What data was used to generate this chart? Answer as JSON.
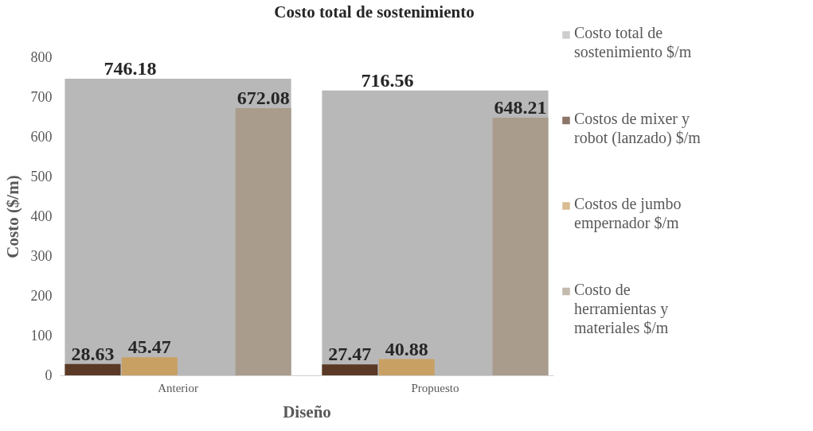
{
  "chart_data": {
    "type": "bar",
    "title": "Costo total de sostenimiento",
    "xlabel": "Diseño",
    "ylabel": "Costo ($/m)",
    "categories": [
      "Anterior",
      "Propuesto"
    ],
    "series": [
      {
        "name": "Costo total de sostenimiento $/m",
        "color": "#b8b8b8",
        "values": [
          746.18,
          716.56
        ]
      },
      {
        "name": "Costos de mixer y robot (lanzado) $/m",
        "color": "#5a3a26",
        "values": [
          28.63,
          27.47
        ]
      },
      {
        "name": "Costos de jumbo empernador $/m",
        "color": "#c9a064",
        "values": [
          45.47,
          40.88
        ]
      },
      {
        "name": "Costo de herramientas y materiales $/m",
        "color": "#a99c8c",
        "values": [
          672.08,
          648.21
        ]
      }
    ],
    "ylim": [
      0,
      800
    ],
    "yticks": [
      0,
      100,
      200,
      300,
      400,
      500,
      600,
      700,
      800
    ],
    "grid": false,
    "legend": "right",
    "data_labels": true
  }
}
